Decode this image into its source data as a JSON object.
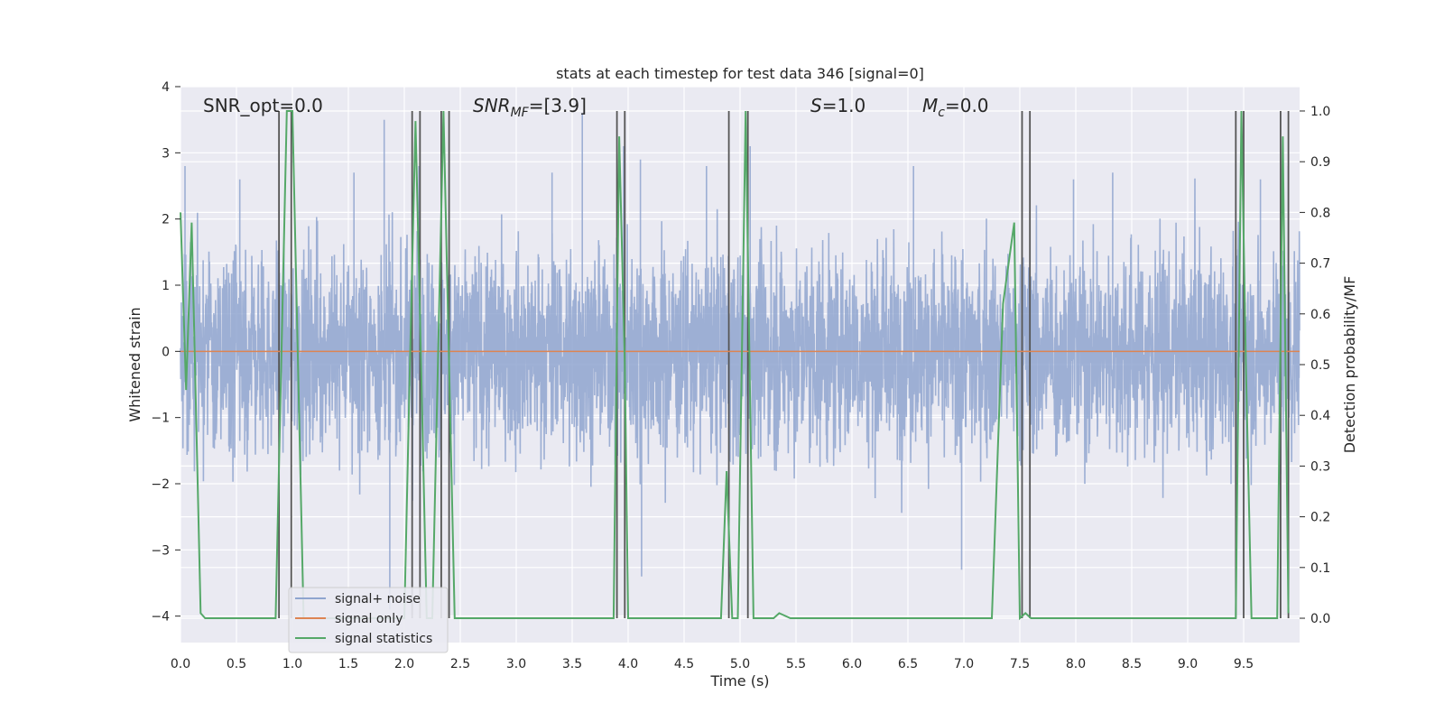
{
  "chart_data": {
    "type": "line",
    "title": "stats at each timestep for test data 346 [signal=0]",
    "xlabel": "Time (s)",
    "ylabel": "Whitened strain",
    "y2label": "Detection probability/MF",
    "xlim": [
      0.0,
      10.0
    ],
    "ylim": [
      -4.4,
      4.0
    ],
    "y2lim": [
      -0.048,
      1.048
    ],
    "x_ticks": [
      "0.0",
      "0.5",
      "1.0",
      "1.5",
      "2.0",
      "2.5",
      "3.0",
      "3.5",
      "4.0",
      "4.5",
      "5.0",
      "5.5",
      "6.0",
      "6.5",
      "7.0",
      "7.5",
      "8.0",
      "8.5",
      "9.0",
      "9.5"
    ],
    "y_ticks": [
      "−4",
      "−3",
      "−2",
      "−1",
      "0",
      "1",
      "2",
      "3",
      "4"
    ],
    "y2_ticks": [
      "0.0",
      "0.1",
      "0.2",
      "0.3",
      "0.4",
      "0.5",
      "0.6",
      "0.7",
      "0.8",
      "0.9",
      "1.0"
    ],
    "grid": true,
    "legend_position": "lower-left",
    "annotations": {
      "snr_opt": "SNR_opt=0.0",
      "snr_mf": "SNR_MF=[3.9]",
      "s": "S=1.0",
      "mc": "M_c=0.0"
    },
    "series": [
      {
        "name": "signal+ noise",
        "color": "#8fa5cf",
        "kind": "noise",
        "noise_std": 0.8,
        "noise_envelope": [
          -2.0,
          2.2
        ],
        "occasional_peaks": [
          {
            "x": 0.04,
            "y": 2.8
          },
          {
            "x": 0.53,
            "y": 2.6
          },
          {
            "x": 1.55,
            "y": 2.7
          },
          {
            "x": 1.82,
            "y": 3.5
          },
          {
            "x": 1.87,
            "y": -3.9
          },
          {
            "x": 2.13,
            "y": 2.8
          },
          {
            "x": 3.32,
            "y": 2.7
          },
          {
            "x": 3.59,
            "y": 3.6
          },
          {
            "x": 3.96,
            "y": 3.1
          },
          {
            "x": 4.11,
            "y": 2.9
          },
          {
            "x": 4.12,
            "y": -3.4
          },
          {
            "x": 4.7,
            "y": 2.8
          },
          {
            "x": 5.09,
            "y": 3.1
          },
          {
            "x": 6.55,
            "y": 2.8
          },
          {
            "x": 6.98,
            "y": -3.3
          },
          {
            "x": 7.98,
            "y": 2.6
          },
          {
            "x": 8.33,
            "y": 2.7
          },
          {
            "x": 9.65,
            "y": 2.6
          },
          {
            "x": 9.9,
            "y": 2.8
          }
        ]
      },
      {
        "name": "signal only",
        "color": "#dd8452",
        "kind": "line",
        "x": [
          0.0,
          10.0
        ],
        "y": [
          0.0,
          0.0
        ]
      },
      {
        "name": "signal statistics",
        "color": "#55a868",
        "kind": "line",
        "axis": "right",
        "x": [
          0.0,
          0.05,
          0.1,
          0.15,
          0.18,
          0.22,
          0.3,
          0.5,
          0.85,
          0.9,
          0.95,
          1.0,
          1.05,
          1.1,
          1.5,
          1.9,
          2.0,
          2.05,
          2.1,
          2.15,
          2.2,
          2.25,
          2.3,
          2.35,
          2.4,
          2.45,
          3.0,
          3.87,
          3.92,
          3.97,
          4.0,
          4.5,
          4.83,
          4.88,
          4.93,
          4.98,
          5.05,
          5.12,
          5.2,
          5.3,
          5.35,
          5.45,
          6.0,
          7.0,
          7.25,
          7.35,
          7.45,
          7.5,
          7.55,
          7.6,
          7.65,
          8.0,
          9.0,
          9.43,
          9.48,
          9.52,
          9.57,
          9.65,
          9.8,
          9.85,
          9.9
        ],
        "y": [
          0.8,
          0.45,
          0.78,
          0.3,
          0.01,
          0.0,
          0.0,
          0.0,
          0.0,
          0.5,
          1.0,
          1.0,
          0.5,
          0.0,
          0.0,
          0.0,
          0.0,
          0.5,
          0.98,
          0.5,
          0.0,
          0.0,
          0.5,
          1.0,
          0.5,
          0.0,
          0.0,
          0.0,
          0.95,
          0.5,
          0.0,
          0.0,
          0.0,
          0.29,
          0.0,
          0.0,
          1.0,
          0.0,
          0.0,
          0.0,
          0.01,
          0.0,
          0.0,
          0.0,
          0.0,
          0.62,
          0.78,
          0.0,
          0.01,
          0.0,
          0.0,
          0.0,
          0.0,
          0.0,
          1.0,
          0.5,
          0.0,
          0.0,
          0.0,
          0.95,
          0.01
        ]
      }
    ],
    "vertical_markers": [
      0.88,
      0.99,
      2.07,
      2.14,
      2.33,
      2.4,
      3.9,
      3.97,
      4.9,
      5.07,
      7.52,
      7.59,
      9.43,
      9.5,
      9.83,
      9.9
    ]
  }
}
